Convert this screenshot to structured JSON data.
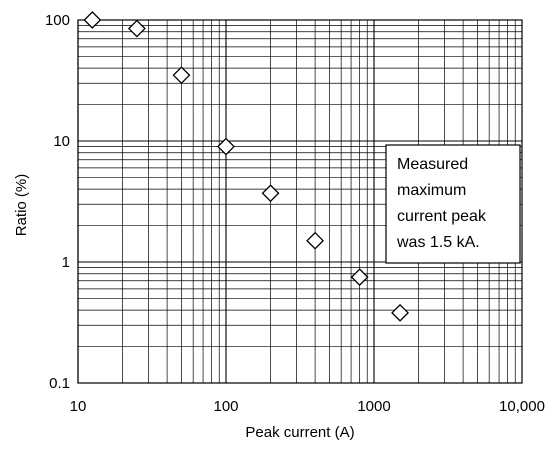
{
  "chart_data": {
    "type": "scatter",
    "title": "",
    "xlabel": "Peak current (A)",
    "ylabel": "Ratio (%)",
    "x_scale": "log",
    "y_scale": "log",
    "xlim": [
      10,
      10000
    ],
    "ylim": [
      0.1,
      100
    ],
    "x_ticks": [
      10,
      100,
      1000,
      10000
    ],
    "x_tick_labels": [
      "10",
      "100",
      "1000",
      "10,000"
    ],
    "y_ticks": [
      0.1,
      1,
      10,
      100
    ],
    "y_tick_labels": [
      "0.1",
      "1",
      "10",
      "100"
    ],
    "grid": true,
    "marker": "diamond-open",
    "series": [
      {
        "x": [
          12.5,
          25,
          50,
          100,
          200,
          400,
          800,
          1500
        ],
        "y": [
          100,
          85,
          35,
          9,
          3.7,
          1.5,
          0.75,
          0.38
        ]
      }
    ],
    "annotation": {
      "lines": [
        "Measured",
        "maximum",
        "current peak",
        "was 1.5 kA."
      ],
      "placement": "right-middle"
    }
  }
}
